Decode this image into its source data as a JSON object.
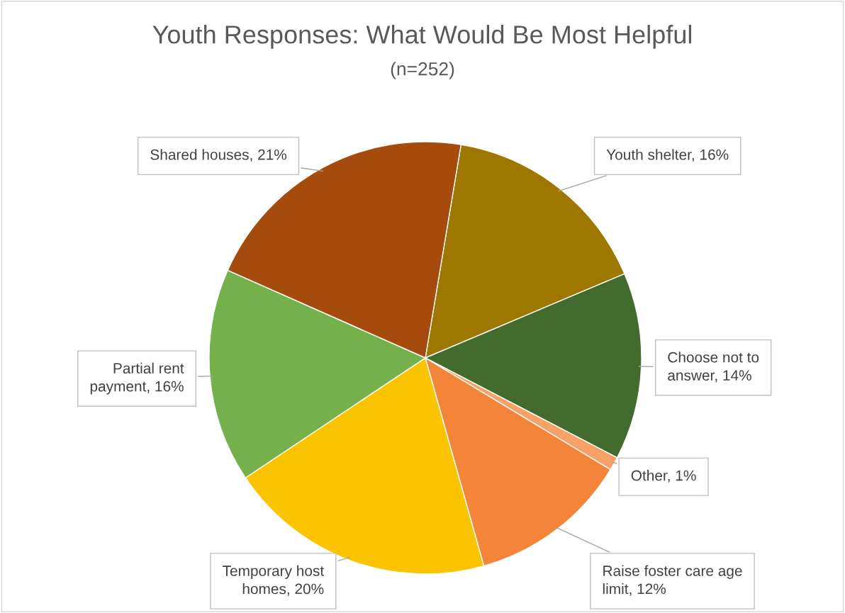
{
  "chart_data": {
    "type": "pie",
    "title": "Youth Responses: What Would Be Most Helpful",
    "subtitle": "(n=252)",
    "categories": [
      "Youth shelter",
      "Choose not to answer",
      "Other",
      "Raise foster care age limit",
      "Temporary host homes",
      "Partial rent payment",
      "Shared houses"
    ],
    "values": [
      16,
      14,
      1,
      12,
      20,
      16,
      21
    ],
    "value_labels": [
      "16%",
      "14%",
      "1%",
      "12%",
      "20%",
      "16%",
      "21%"
    ],
    "colors": [
      "#9e7700",
      "#436b2e",
      "#f9a066",
      "#f4843a",
      "#fcc400",
      "#74b14d",
      "#a54b0e"
    ],
    "legend": false
  }
}
